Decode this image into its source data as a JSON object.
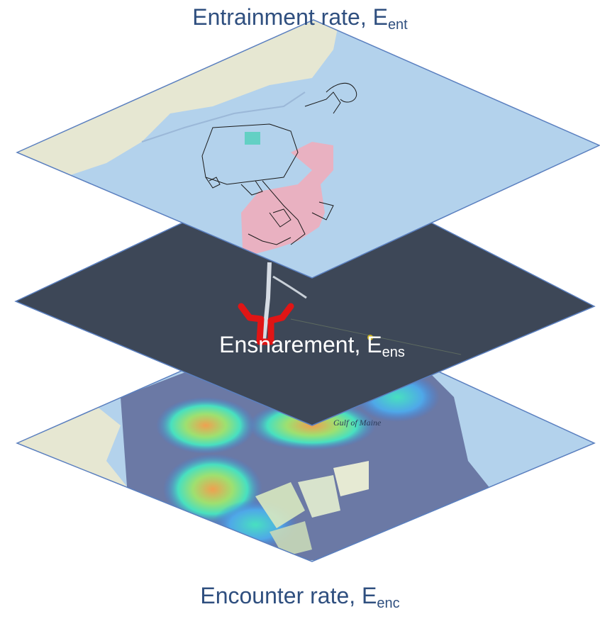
{
  "layers": {
    "top": {
      "name": "Entrainment rate, E",
      "subscript": "ent"
    },
    "middle": {
      "name": "Ensnarement, E",
      "subscript": "ens"
    },
    "bottom": {
      "name": "Encounter rate, E",
      "subscript": "enc",
      "map_text": "Gulf of Maine"
    }
  },
  "colors": {
    "label_text": "#2f4f7f",
    "layer_border": "#5a7fbf",
    "dark_layer": "#3d4757",
    "land": "#e6e7d2",
    "water": "#b3d2ec",
    "highlight_area": "#e9b1c1",
    "buoy": "#e01515",
    "heat_low": "#3f7fe0",
    "heat_mid": "#48e0c0",
    "heat_high": "#f0a050"
  }
}
